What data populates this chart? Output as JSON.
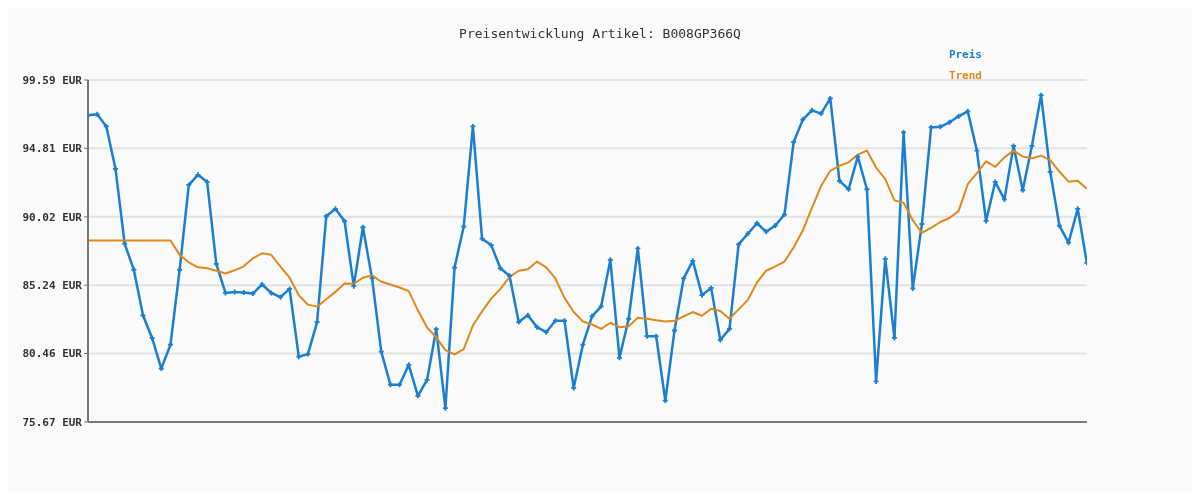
{
  "chart_data": {
    "type": "line",
    "title": "Preisentwicklung Artikel: B008GP366Q",
    "categories": [
      null,
      null,
      null,
      null,
      null,
      null,
      null,
      null,
      null,
      null,
      null,
      null,
      null,
      null,
      null,
      null,
      null,
      null,
      null,
      null,
      null,
      null,
      null,
      null,
      null,
      null,
      null,
      null,
      null,
      null,
      null,
      null,
      null,
      null,
      null,
      null,
      null,
      null,
      null,
      null,
      null,
      null,
      null,
      null,
      null,
      null,
      null,
      null,
      null,
      null,
      null,
      null,
      null,
      null,
      null,
      null,
      null,
      null,
      null,
      null,
      null,
      null,
      null,
      null,
      null,
      null,
      null,
      null,
      null,
      null,
      null,
      null,
      null,
      null,
      null,
      null,
      null,
      null,
      null,
      null,
      null,
      null,
      null,
      null,
      null,
      null,
      null,
      null,
      null,
      null,
      null,
      null,
      null,
      null,
      null,
      null,
      null,
      null,
      null,
      null,
      null,
      null,
      null,
      null,
      null,
      null,
      null,
      null,
      null,
      null
    ],
    "series": [
      {
        "name": "Preis",
        "color": "#1a7fd0",
        "marker": "cross",
        "values": [
          97.12,
          97.19,
          96.34,
          93.38,
          88.14,
          86.32,
          83.13,
          81.53,
          79.41,
          81.08,
          86.32,
          92.25,
          92.96,
          92.46,
          86.73,
          84.7,
          84.77,
          84.72,
          84.65,
          85.29,
          84.7,
          84.4,
          84.98,
          80.24,
          80.42,
          82.66,
          90.06,
          90.58,
          89.71,
          85.17,
          89.29,
          85.71,
          80.59,
          78.28,
          78.28,
          79.67,
          77.5,
          78.61,
          82.16,
          76.64,
          86.47,
          89.34,
          96.34,
          88.49,
          88.04,
          86.42,
          85.9,
          82.66,
          83.13,
          82.3,
          81.95,
          82.75,
          82.75,
          78.05,
          81.08,
          83.06,
          83.76,
          87.01,
          80.16,
          82.89,
          87.81,
          81.67,
          81.67,
          77.17,
          82.07,
          85.71,
          86.94,
          84.54,
          85.05,
          81.41,
          82.18,
          88.09,
          88.84,
          89.57,
          88.98,
          89.41,
          90.18,
          95.24,
          96.82,
          97.47,
          97.24,
          98.3,
          92.53,
          91.95,
          94.23,
          91.95,
          78.51,
          87.08,
          81.55,
          95.92,
          85.01,
          89.52,
          96.27,
          96.32,
          96.63,
          97.05,
          97.4,
          94.65,
          89.73,
          92.46,
          91.24,
          94.98,
          91.88,
          94.98,
          98.53,
          93.17,
          89.41,
          88.21,
          90.58,
          86.8
        ]
      },
      {
        "name": "Trend",
        "color": "#e0881c",
        "marker": "none",
        "values": [
          88.37,
          88.37,
          88.37,
          88.37,
          88.37,
          88.37,
          88.37,
          88.37,
          88.37,
          88.37,
          87.36,
          86.84,
          86.49,
          86.42,
          86.25,
          86.06,
          86.28,
          86.56,
          87.12,
          87.47,
          87.36,
          86.54,
          85.76,
          84.54,
          83.88,
          83.74,
          84.26,
          84.77,
          85.36,
          85.34,
          85.76,
          85.92,
          85.48,
          85.29,
          85.08,
          84.82,
          83.48,
          82.28,
          81.6,
          80.7,
          80.4,
          80.77,
          82.42,
          83.41,
          84.3,
          84.98,
          85.81,
          86.25,
          86.35,
          86.89,
          86.49,
          85.71,
          84.35,
          83.36,
          82.7,
          82.49,
          82.18,
          82.61,
          82.3,
          82.37,
          82.96,
          82.89,
          82.78,
          82.7,
          82.75,
          83.06,
          83.36,
          83.1,
          83.59,
          83.43,
          82.89,
          83.55,
          84.21,
          85.43,
          86.25,
          86.56,
          86.89,
          87.88,
          89.06,
          90.65,
          92.18,
          93.24,
          93.59,
          93.83,
          94.37,
          94.65,
          93.47,
          92.65,
          91.17,
          91.0,
          89.78,
          88.89,
          89.24,
          89.66,
          89.94,
          90.42,
          92.3,
          93.08,
          93.9,
          93.52,
          94.18,
          94.65,
          94.23,
          94.11,
          94.3,
          93.99,
          93.19,
          92.48,
          92.55,
          91.99
        ]
      }
    ],
    "ylim": [
      75.67,
      99.59
    ],
    "yticks": [
      {
        "value": 75.67,
        "label": "75.67 EUR"
      },
      {
        "value": 80.46,
        "label": "80.46 EUR"
      },
      {
        "value": 85.24,
        "label": "85.24 EUR"
      },
      {
        "value": 90.02,
        "label": "90.02 EUR"
      },
      {
        "value": 94.81,
        "label": "94.81 EUR"
      },
      {
        "value": 99.59,
        "label": "99.59 EUR"
      }
    ],
    "grid": "y",
    "legend": "top right",
    "tick_labels": "y",
    "line_style": "solid"
  }
}
